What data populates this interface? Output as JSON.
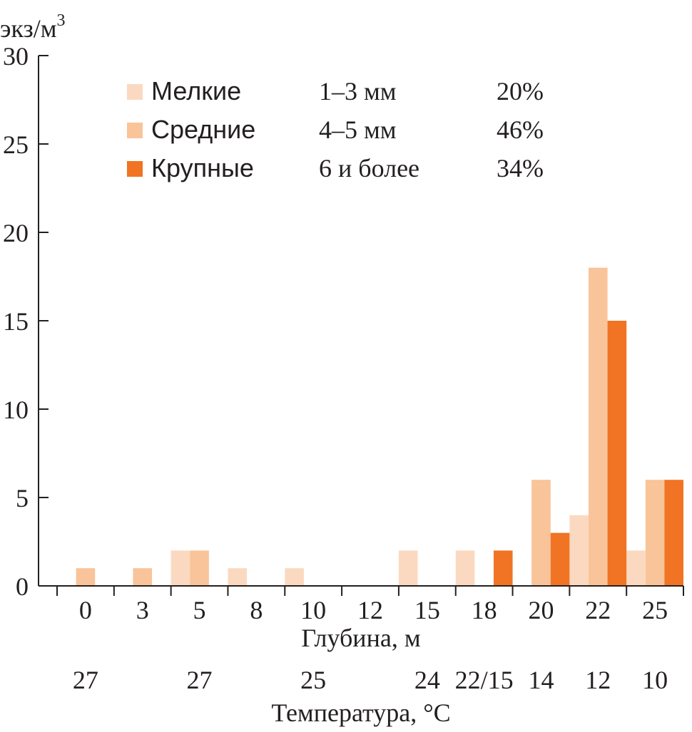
{
  "chart_data": {
    "type": "bar",
    "ylabel": "экз/м",
    "ylabel_sup": "3",
    "ylim": [
      0,
      30
    ],
    "yticks": [
      "0",
      "5",
      "10",
      "15",
      "20",
      "25",
      "30"
    ],
    "xlabel": "Глубина, м",
    "categories": [
      "0",
      "3",
      "5",
      "8",
      "10",
      "12",
      "15",
      "18",
      "20",
      "22",
      "25"
    ],
    "temperature_label": "Температура, °C",
    "temperatures": [
      "27",
      "",
      "27",
      "",
      "25",
      "",
      "24",
      "22/15",
      "14",
      "12",
      "10"
    ],
    "series": [
      {
        "name": "Мелкие",
        "size": "1–3 мм",
        "share": "20%",
        "color": "#fbd9c0",
        "values": [
          0,
          0,
          2,
          1,
          1,
          0,
          2,
          2,
          0,
          4,
          2
        ]
      },
      {
        "name": "Средние",
        "size": "4–5 мм",
        "share": "46%",
        "color": "#f9c499",
        "values": [
          1,
          1,
          2,
          0,
          0,
          0,
          0,
          0,
          6,
          18,
          6
        ]
      },
      {
        "name": "Крупные",
        "size": "6 и более",
        "share": "34%",
        "color": "#f07423",
        "values": [
          0,
          0,
          0,
          0,
          0,
          0,
          0,
          2,
          3,
          15,
          6
        ]
      }
    ],
    "legend_position": "top-left",
    "grid": false
  }
}
